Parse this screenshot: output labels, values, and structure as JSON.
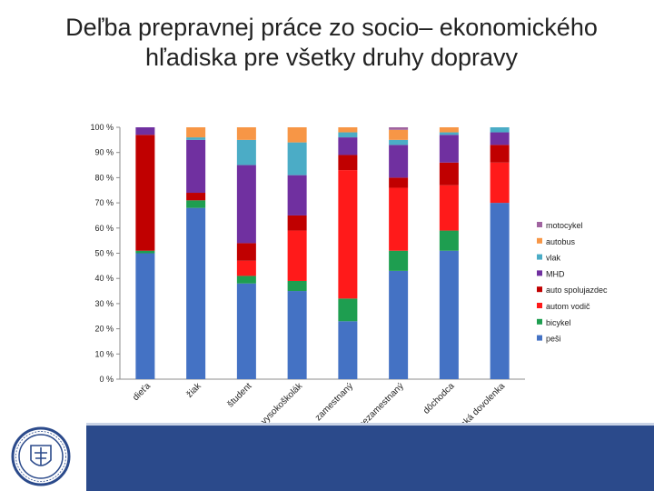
{
  "title": "Deľba prepravnej práce zo socio– ekonomického hľadiska pre všetky druhy dopravy",
  "colors": {
    "pesi": "#4472c4",
    "bicykel": "#1e9e50",
    "autom_vodic": "#ff1a1a",
    "auto_spolujazdec": "#c00000",
    "MHD": "#7030a0",
    "vlak": "#4bacc6",
    "autobus": "#f79646",
    "motocykel": "#a064a0",
    "footer": "#2b4a8b"
  },
  "chart_data": {
    "type": "bar",
    "stacked": true,
    "categories": [
      "dieťa",
      "žiak",
      "študent",
      "vysokoškolák",
      "zamestnaný",
      "nezamestnaný",
      "dôchodca",
      "materská dovolenka"
    ],
    "series": [
      {
        "name": "peši",
        "color": "#4472c4",
        "values": [
          50,
          68,
          38,
          35,
          23,
          43,
          51,
          70
        ]
      },
      {
        "name": "bicykel",
        "color": "#1e9e50",
        "values": [
          1,
          3,
          3,
          4,
          9,
          8,
          8,
          0
        ]
      },
      {
        "name": "autom vodič",
        "color": "#ff1a1a",
        "values": [
          0,
          0,
          6,
          20,
          51,
          25,
          18,
          16
        ]
      },
      {
        "name": "auto spolujazdec",
        "color": "#c00000",
        "values": [
          46,
          3,
          7,
          6,
          6,
          4,
          9,
          7
        ]
      },
      {
        "name": "MHD",
        "color": "#7030a0",
        "values": [
          3,
          21,
          31,
          16,
          7,
          13,
          11,
          5
        ]
      },
      {
        "name": "vlak",
        "color": "#4bacc6",
        "values": [
          0,
          1,
          10,
          13,
          2,
          2,
          1,
          2
        ]
      },
      {
        "name": "autobus",
        "color": "#f79646",
        "values": [
          0,
          4,
          5,
          6,
          2,
          4,
          2,
          0
        ]
      },
      {
        "name": "motocykel",
        "color": "#a064a0",
        "values": [
          0,
          0,
          0,
          0,
          0,
          1,
          0,
          0
        ]
      }
    ],
    "y_ticks": [
      "0 %",
      "10 %",
      "20 %",
      "30 %",
      "40 %",
      "50 %",
      "60 %",
      "70 %",
      "80 %",
      "90 %",
      "100 %"
    ],
    "ylim": [
      0,
      100
    ],
    "grid": false,
    "legend_position": "right",
    "legend_order": [
      "motocykel",
      "autobus",
      "vlak",
      "MHD",
      "auto spolujazdec",
      "autom vodič",
      "bicykel",
      "peši"
    ]
  }
}
